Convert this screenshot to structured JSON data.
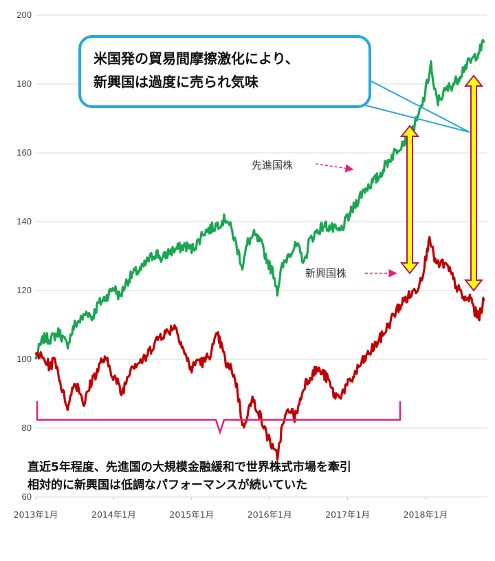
{
  "chart_data": {
    "type": "line",
    "ylim": [
      60,
      200
    ],
    "yticks": [
      60,
      80,
      100,
      120,
      140,
      160,
      180,
      200
    ],
    "grid": true,
    "x_range": [
      2013.0,
      2018.75
    ],
    "xticks": [
      {
        "x": 2013.0,
        "label": "2013年1月"
      },
      {
        "x": 2014.0,
        "label": "2014年1月"
      },
      {
        "x": 2015.0,
        "label": "2015年1月"
      },
      {
        "x": 2016.0,
        "label": "2016年1月"
      },
      {
        "x": 2017.0,
        "label": "2017年1月"
      },
      {
        "x": 2018.0,
        "label": "2018年1月"
      }
    ],
    "series": [
      {
        "name": "先進国株",
        "color": "#1aa650",
        "points": [
          [
            2013.0,
            100
          ],
          [
            2013.04,
            103
          ],
          [
            2013.1,
            106
          ],
          [
            2013.2,
            106
          ],
          [
            2013.3,
            108
          ],
          [
            2013.4,
            104
          ],
          [
            2013.5,
            110
          ],
          [
            2013.6,
            112
          ],
          [
            2013.66,
            114
          ],
          [
            2013.72,
            112
          ],
          [
            2013.8,
            116
          ],
          [
            2013.9,
            118
          ],
          [
            2014.0,
            121
          ],
          [
            2014.08,
            118
          ],
          [
            2014.15,
            122
          ],
          [
            2014.25,
            125
          ],
          [
            2014.35,
            126
          ],
          [
            2014.45,
            129
          ],
          [
            2014.55,
            131
          ],
          [
            2014.62,
            129
          ],
          [
            2014.7,
            131
          ],
          [
            2014.8,
            132
          ],
          [
            2014.92,
            133
          ],
          [
            2015.0,
            132
          ],
          [
            2015.08,
            134
          ],
          [
            2015.15,
            137
          ],
          [
            2015.25,
            138
          ],
          [
            2015.32,
            139
          ],
          [
            2015.38,
            140
          ],
          [
            2015.45,
            141
          ],
          [
            2015.52,
            137
          ],
          [
            2015.6,
            131
          ],
          [
            2015.65,
            127
          ],
          [
            2015.72,
            134
          ],
          [
            2015.8,
            136
          ],
          [
            2015.88,
            134
          ],
          [
            2015.95,
            130
          ],
          [
            2016.0,
            127
          ],
          [
            2016.05,
            125
          ],
          [
            2016.1,
            120
          ],
          [
            2016.15,
            126
          ],
          [
            2016.25,
            131
          ],
          [
            2016.35,
            133
          ],
          [
            2016.45,
            128
          ],
          [
            2016.5,
            134
          ],
          [
            2016.6,
            137
          ],
          [
            2016.7,
            139
          ],
          [
            2016.8,
            138
          ],
          [
            2016.9,
            137
          ],
          [
            2017.0,
            141
          ],
          [
            2017.1,
            145
          ],
          [
            2017.2,
            149
          ],
          [
            2017.3,
            151
          ],
          [
            2017.4,
            153
          ],
          [
            2017.5,
            157
          ],
          [
            2017.6,
            160
          ],
          [
            2017.7,
            163
          ],
          [
            2017.8,
            165
          ],
          [
            2017.9,
            170
          ],
          [
            2017.97,
            175
          ],
          [
            2018.03,
            181
          ],
          [
            2018.07,
            186
          ],
          [
            2018.1,
            179
          ],
          [
            2018.16,
            175
          ],
          [
            2018.22,
            177
          ],
          [
            2018.3,
            179
          ],
          [
            2018.4,
            181
          ],
          [
            2018.5,
            185
          ],
          [
            2018.6,
            187
          ],
          [
            2018.7,
            190
          ],
          [
            2018.75,
            192
          ]
        ]
      },
      {
        "name": "新興国株",
        "color": "#c00000",
        "points": [
          [
            2013.0,
            102
          ],
          [
            2013.05,
            101
          ],
          [
            2013.1,
            100
          ],
          [
            2013.18,
            98
          ],
          [
            2013.25,
            100
          ],
          [
            2013.3,
            95
          ],
          [
            2013.35,
            90
          ],
          [
            2013.42,
            86
          ],
          [
            2013.48,
            93
          ],
          [
            2013.55,
            92
          ],
          [
            2013.62,
            87
          ],
          [
            2013.72,
            94
          ],
          [
            2013.8,
            97
          ],
          [
            2013.85,
            100
          ],
          [
            2013.92,
            99
          ],
          [
            2013.98,
            96
          ],
          [
            2014.05,
            93
          ],
          [
            2014.1,
            90
          ],
          [
            2014.15,
            93
          ],
          [
            2014.22,
            98
          ],
          [
            2014.3,
            99
          ],
          [
            2014.4,
            100
          ],
          [
            2014.5,
            104
          ],
          [
            2014.6,
            107
          ],
          [
            2014.7,
            108
          ],
          [
            2014.78,
            110
          ],
          [
            2014.85,
            106
          ],
          [
            2014.92,
            101
          ],
          [
            2015.0,
            97
          ],
          [
            2015.08,
            100
          ],
          [
            2015.15,
            99
          ],
          [
            2015.22,
            101
          ],
          [
            2015.28,
            104
          ],
          [
            2015.33,
            107
          ],
          [
            2015.38,
            104
          ],
          [
            2015.45,
            98
          ],
          [
            2015.52,
            97
          ],
          [
            2015.58,
            92
          ],
          [
            2015.62,
            86
          ],
          [
            2015.66,
            80
          ],
          [
            2015.72,
            85
          ],
          [
            2015.78,
            88
          ],
          [
            2015.84,
            86
          ],
          [
            2015.9,
            82
          ],
          [
            2015.96,
            78
          ],
          [
            2016.0,
            77
          ],
          [
            2016.05,
            73
          ],
          [
            2016.1,
            72
          ],
          [
            2016.15,
            79
          ],
          [
            2016.2,
            83
          ],
          [
            2016.26,
            86
          ],
          [
            2016.32,
            83
          ],
          [
            2016.38,
            87
          ],
          [
            2016.45,
            93
          ],
          [
            2016.52,
            95
          ],
          [
            2016.6,
            97
          ],
          [
            2016.68,
            96
          ],
          [
            2016.75,
            94
          ],
          [
            2016.82,
            90
          ],
          [
            2016.88,
            89
          ],
          [
            2016.95,
            91
          ],
          [
            2017.05,
            94
          ],
          [
            2017.15,
            98
          ],
          [
            2017.25,
            101
          ],
          [
            2017.35,
            104
          ],
          [
            2017.45,
            107
          ],
          [
            2017.55,
            111
          ],
          [
            2017.62,
            114
          ],
          [
            2017.72,
            117
          ],
          [
            2017.82,
            119
          ],
          [
            2017.9,
            121
          ],
          [
            2017.96,
            125
          ],
          [
            2018.02,
            131
          ],
          [
            2018.05,
            137
          ],
          [
            2018.08,
            132
          ],
          [
            2018.15,
            127
          ],
          [
            2018.22,
            128
          ],
          [
            2018.3,
            126
          ],
          [
            2018.38,
            122
          ],
          [
            2018.45,
            119
          ],
          [
            2018.52,
            117
          ],
          [
            2018.58,
            118
          ],
          [
            2018.63,
            114
          ],
          [
            2018.68,
            112
          ],
          [
            2018.72,
            115
          ],
          [
            2018.75,
            117
          ]
        ]
      }
    ],
    "annotations": {
      "callout": [
        "米国発の貿易間摩擦激化により、",
        "新興国は過度に売られ気味"
      ],
      "developed_label": "先進国株",
      "emerging_label": "新興国株",
      "bottom_note": [
        "直近5年程度、先進国の大規模金融緩和で世界株式市場を牽引",
        "相対的に新興国は低調なパフォーマンスが続いていた"
      ]
    }
  }
}
